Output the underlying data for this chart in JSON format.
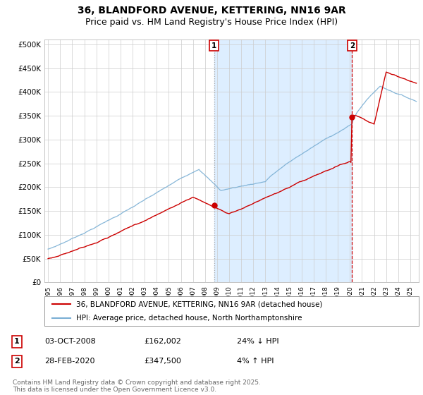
{
  "title": "36, BLANDFORD AVENUE, KETTERING, NN16 9AR",
  "subtitle": "Price paid vs. HM Land Registry's House Price Index (HPI)",
  "ylabel_ticks": [
    "£0",
    "£50K",
    "£100K",
    "£150K",
    "£200K",
    "£250K",
    "£300K",
    "£350K",
    "£400K",
    "£450K",
    "£500K"
  ],
  "ytick_values": [
    0,
    50000,
    100000,
    150000,
    200000,
    250000,
    300000,
    350000,
    400000,
    450000,
    500000
  ],
  "ylim": [
    0,
    510000
  ],
  "xlim_start": 1994.7,
  "xlim_end": 2025.7,
  "xtick_years": [
    1995,
    1996,
    1997,
    1998,
    1999,
    2000,
    2001,
    2002,
    2003,
    2004,
    2005,
    2006,
    2007,
    2008,
    2009,
    2010,
    2011,
    2012,
    2013,
    2014,
    2015,
    2016,
    2017,
    2018,
    2019,
    2020,
    2021,
    2022,
    2023,
    2024,
    2025
  ],
  "red_line_color": "#cc0000",
  "blue_line_color": "#7aafd4",
  "shade_color": "#ddeeff",
  "vline1_color": "#aaaaaa",
  "vline1_style": ":",
  "vline2_color": "#cc0000",
  "vline2_style": "--",
  "grid_color": "#cccccc",
  "bg_color": "#ffffff",
  "sale1_x": 2008.75,
  "sale1_y": 162002,
  "sale2_x": 2020.17,
  "sale2_y": 347500,
  "annotation1_label": "1",
  "annotation2_label": "2",
  "legend_entry1": "36, BLANDFORD AVENUE, KETTERING, NN16 9AR (detached house)",
  "legend_entry2": "HPI: Average price, detached house, North Northamptonshire",
  "note1_box": "1",
  "note1_date": "03-OCT-2008",
  "note1_price": "£162,002",
  "note1_change": "24% ↓ HPI",
  "note2_box": "2",
  "note2_date": "28-FEB-2020",
  "note2_price": "£347,500",
  "note2_change": "4% ↑ HPI",
  "copyright": "Contains HM Land Registry data © Crown copyright and database right 2025.\nThis data is licensed under the Open Government Licence v3.0.",
  "title_fontsize": 10,
  "subtitle_fontsize": 9,
  "tick_fontsize": 7.5,
  "legend_fontsize": 7.5,
  "note_fontsize": 8,
  "copyright_fontsize": 6.5
}
